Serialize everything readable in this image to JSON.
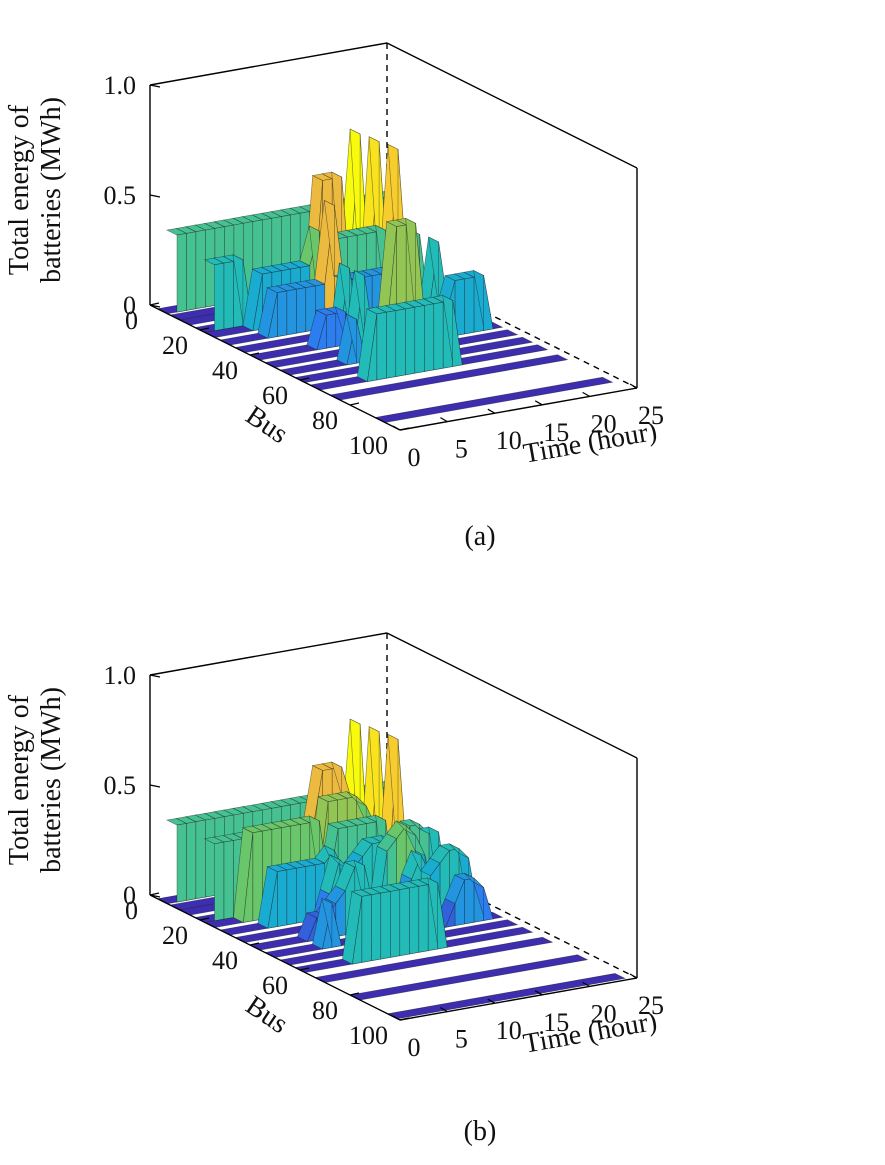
{
  "chart_data": [
    {
      "type": "surface",
      "panel_label": "(a)",
      "zlabel_lines": [
        "Total energy of",
        "batteries (MWh)"
      ],
      "xlabel": "Time (hour)",
      "ylabel": "Bus",
      "xlim": [
        0,
        25
      ],
      "ylim": [
        0,
        100
      ],
      "zlim": [
        0,
        1.0
      ],
      "xticks": [
        "0",
        "5",
        "10",
        "15",
        "20",
        "25"
      ],
      "yticks": [
        "0",
        "20",
        "40",
        "60",
        "80",
        "100"
      ],
      "zticks": [
        "0",
        "0.5",
        "1.0"
      ],
      "series": [
        {
          "bus": 3,
          "values": [
            0.35,
            0.35,
            0.35,
            0.35,
            0.35,
            0.35,
            0.35,
            0.35,
            0.35,
            0.35,
            0.35,
            0.35,
            0.35,
            0.35,
            0.35,
            0.35,
            0.35,
            0.35,
            0.35,
            0.35,
            0.35,
            0.35,
            0.35,
            0.35
          ]
        },
        {
          "bus": 8,
          "values": [
            0,
            0,
            0,
            0,
            0,
            0,
            0,
            0,
            0,
            0,
            0,
            0,
            0,
            0,
            0,
            0,
            0,
            0.15,
            0.7,
            0,
            0.65,
            0,
            0.6,
            0
          ]
        },
        {
          "bus": 12,
          "values": [
            0,
            0,
            0,
            0,
            0,
            0,
            0,
            0,
            0,
            0,
            0,
            0,
            0,
            0.55,
            0.55,
            0.55,
            0,
            0,
            0,
            0,
            0,
            0,
            0,
            0
          ]
        },
        {
          "bus": 18,
          "values": [
            0.3,
            0.3,
            0.3,
            0.3,
            0,
            0,
            0,
            0,
            0,
            0,
            0,
            0,
            0.3,
            0.3,
            0.3,
            0.3,
            0.3,
            0,
            0,
            0.25,
            0,
            0,
            0,
            0
          ]
        },
        {
          "bus": 22,
          "values": [
            0,
            0,
            0,
            0,
            0.25,
            0.25,
            0.25,
            0.25,
            0.25,
            0.25,
            0.4,
            0,
            0.35,
            0.35,
            0.35,
            0.35,
            0.35,
            0.35,
            0,
            0,
            0,
            0,
            0,
            0
          ]
        },
        {
          "bus": 28,
          "values": [
            0,
            0,
            0,
            0,
            0.2,
            0.2,
            0.2,
            0.2,
            0.2,
            0.2,
            0.55,
            0.2,
            0.2,
            0.2,
            0.2,
            0.2,
            0.2,
            0.2,
            0.35,
            0.35,
            0,
            0.3,
            0,
            0
          ]
        },
        {
          "bus": 34,
          "values": [
            0,
            0,
            0,
            0,
            0,
            0,
            0,
            0,
            0,
            0,
            0.3,
            0,
            0,
            0,
            0,
            0.45,
            0.45,
            0.45,
            0,
            0,
            0,
            0,
            0,
            0
          ]
        },
        {
          "bus": 40,
          "values": [
            0,
            0,
            0,
            0,
            0,
            0,
            0.15,
            0.15,
            0.15,
            0,
            0.3,
            0,
            0,
            0,
            0,
            0.1,
            0.1,
            0.1,
            0,
            0,
            0,
            0,
            0,
            0
          ]
        },
        {
          "bus": 46,
          "values": [
            0,
            0,
            0,
            0,
            0,
            0,
            0,
            0,
            0,
            0,
            0,
            0,
            0,
            0,
            0,
            0.1,
            0.1,
            0.1,
            0.25,
            0.25,
            0.25,
            0.25,
            0,
            0
          ]
        },
        {
          "bus": 52,
          "values": [
            0,
            0,
            0,
            0,
            0,
            0,
            0.2,
            0,
            0,
            0,
            0.15,
            0.15,
            0.15,
            0,
            0,
            0,
            0,
            0,
            0,
            0,
            0,
            0,
            0,
            0
          ]
        },
        {
          "bus": 58,
          "values": [
            0,
            0,
            0,
            0,
            0,
            0,
            0,
            0,
            0,
            0,
            0,
            0,
            0,
            0,
            0,
            0,
            0,
            0,
            0,
            0,
            0,
            0,
            0,
            0
          ]
        },
        {
          "bus": 64,
          "values": [
            0,
            0,
            0,
            0,
            0,
            0.3,
            0.3,
            0.3,
            0.3,
            0.3,
            0.3,
            0.3,
            0.3,
            0.3,
            0,
            0,
            0,
            0,
            0,
            0,
            0,
            0,
            0,
            0
          ]
        },
        {
          "bus": 72,
          "values": [
            0,
            0,
            0,
            0,
            0,
            0,
            0,
            0,
            0,
            0,
            0,
            0,
            0,
            0,
            0,
            0,
            0,
            0,
            0,
            0,
            0,
            0,
            0,
            0
          ]
        },
        {
          "bus": 90,
          "values": [
            0,
            0,
            0,
            0,
            0,
            0,
            0,
            0,
            0,
            0,
            0,
            0,
            0,
            0,
            0,
            0,
            0,
            0,
            0,
            0,
            0,
            0,
            0,
            0
          ]
        }
      ]
    },
    {
      "type": "surface",
      "panel_label": "(b)",
      "zlabel_lines": [
        "Total energy of",
        "batteries (MWh)"
      ],
      "xlabel": "Time (hour)",
      "ylabel": "Bus",
      "xlim": [
        0,
        25
      ],
      "ylim": [
        0,
        100
      ],
      "zlim": [
        0,
        1.0
      ],
      "xticks": [
        "0",
        "5",
        "10",
        "15",
        "20",
        "25"
      ],
      "yticks": [
        "0",
        "20",
        "40",
        "60",
        "80",
        "100"
      ],
      "zticks": [
        "0",
        "0.5",
        "1.0"
      ],
      "series": [
        {
          "bus": 3,
          "values": [
            0.35,
            0.35,
            0.35,
            0.35,
            0.35,
            0.35,
            0.35,
            0.35,
            0.35,
            0.35,
            0.35,
            0.35,
            0.35,
            0.35,
            0.35,
            0.35,
            0.35,
            0.35,
            0.35,
            0.35,
            0.35,
            0.35,
            0.35,
            0.35
          ]
        },
        {
          "bus": 8,
          "values": [
            0,
            0,
            0,
            0,
            0,
            0,
            0,
            0,
            0,
            0,
            0,
            0,
            0,
            0,
            0,
            0,
            0,
            0.15,
            0.7,
            0,
            0.65,
            0,
            0.6,
            0
          ]
        },
        {
          "bus": 12,
          "values": [
            0,
            0,
            0,
            0,
            0,
            0,
            0,
            0,
            0,
            0,
            0,
            0,
            0.3,
            0.55,
            0.55,
            0.55,
            0.4,
            0,
            0,
            0,
            0,
            0,
            0,
            0
          ]
        },
        {
          "bus": 18,
          "values": [
            0.35,
            0.35,
            0.35,
            0.35,
            0.35,
            0.35,
            0.35,
            0.35,
            0,
            0,
            0,
            0.1,
            0.45,
            0.45,
            0.45,
            0.45,
            0.4,
            0.3,
            0,
            0.2,
            0,
            0,
            0,
            0
          ]
        },
        {
          "bus": 22,
          "values": [
            0,
            0,
            0,
            0.4,
            0.4,
            0.4,
            0.4,
            0.4,
            0.4,
            0.4,
            0.4,
            0.1,
            0.35,
            0.35,
            0.35,
            0.35,
            0.35,
            0.35,
            0,
            0,
            0,
            0,
            0,
            0
          ]
        },
        {
          "bus": 28,
          "values": [
            0,
            0,
            0,
            0,
            0.25,
            0.25,
            0.25,
            0.25,
            0.25,
            0.25,
            0.3,
            0.2,
            0.2,
            0.25,
            0.3,
            0.3,
            0.3,
            0.2,
            0.35,
            0.35,
            0.3,
            0.3,
            0,
            0
          ]
        },
        {
          "bus": 34,
          "values": [
            0,
            0,
            0,
            0,
            0,
            0,
            0,
            0,
            0.15,
            0.3,
            0.25,
            0,
            0,
            0,
            0.3,
            0.35,
            0.4,
            0.35,
            0.25,
            0,
            0,
            0,
            0,
            0
          ]
        },
        {
          "bus": 40,
          "values": [
            0,
            0,
            0,
            0,
            0,
            0.1,
            0.1,
            0.15,
            0.2,
            0.3,
            0.3,
            0.1,
            0.1,
            0,
            0,
            0.2,
            0.3,
            0.2,
            0.25,
            0.3,
            0.3,
            0.25,
            0,
            0
          ]
        },
        {
          "bus": 46,
          "values": [
            0,
            0,
            0,
            0,
            0,
            0.2,
            0,
            0,
            0,
            0.1,
            0.15,
            0.15,
            0.1,
            0,
            0,
            0,
            0,
            0,
            0.1,
            0.2,
            0.2,
            0.15,
            0,
            0
          ]
        },
        {
          "bus": 52,
          "values": [
            0,
            0,
            0,
            0,
            0,
            0,
            0,
            0,
            0,
            0,
            0,
            0,
            0,
            0,
            0,
            0,
            0,
            0,
            0,
            0,
            0,
            0,
            0,
            0
          ]
        },
        {
          "bus": 58,
          "values": [
            0,
            0,
            0,
            0,
            0,
            0.3,
            0.3,
            0.3,
            0.3,
            0.3,
            0.3,
            0.3,
            0.3,
            0.3,
            0,
            0,
            0,
            0,
            0,
            0,
            0,
            0,
            0,
            0
          ]
        },
        {
          "bus": 66,
          "values": [
            0,
            0,
            0,
            0,
            0,
            0,
            0,
            0,
            0,
            0,
            0,
            0,
            0,
            0,
            0,
            0,
            0,
            0,
            0,
            0,
            0,
            0,
            0,
            0
          ]
        },
        {
          "bus": 80,
          "values": [
            0,
            0,
            0,
            0,
            0,
            0,
            0,
            0,
            0,
            0,
            0,
            0,
            0,
            0,
            0,
            0,
            0,
            0,
            0,
            0,
            0,
            0,
            0,
            0
          ]
        },
        {
          "bus": 95,
          "values": [
            0,
            0,
            0,
            0,
            0,
            0,
            0,
            0,
            0,
            0,
            0,
            0,
            0,
            0,
            0,
            0,
            0,
            0,
            0,
            0,
            0,
            0,
            0,
            0
          ]
        }
      ]
    }
  ]
}
